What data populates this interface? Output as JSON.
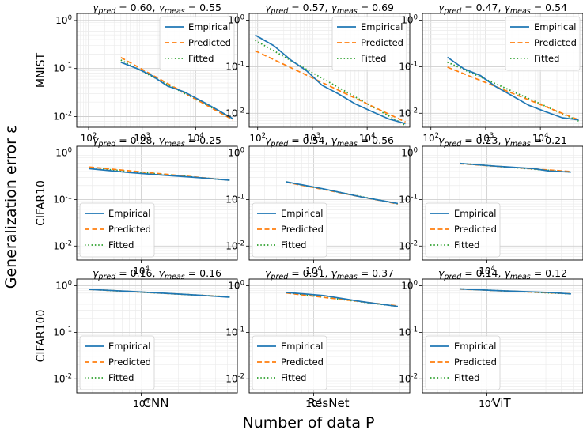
{
  "figure": {
    "ylabel": "Generalization error ε",
    "xlabel": "Number of data P",
    "row_labels": [
      "MNIST",
      "CIFAR10",
      "CIFAR100"
    ],
    "col_labels": [
      "CNN",
      "ResNet",
      "ViT"
    ],
    "legend": [
      "Empirical",
      "Predicted",
      "Fitted"
    ],
    "colors": {
      "empirical": "#1f77b4",
      "predicted": "#ff7f0e",
      "fitted": "#2ca02c",
      "grid": "#d9d9d9"
    },
    "legend_placement": {
      "MNIST": "upper right",
      "CIFAR10": "lower left",
      "CIFAR100": "lower left"
    }
  },
  "chart_data": [
    {
      "type": "line",
      "row": "MNIST",
      "model": "CNN",
      "title": "γpred = 0.60, γmeas = 0.55",
      "gamma_pred": "0.60",
      "gamma_meas": "0.55",
      "xscale": "log",
      "yscale": "log",
      "xlim": [
        60,
        60000
      ],
      "ylim": [
        0.006,
        1.4
      ],
      "xticks": [
        "10^2",
        "10^3",
        "10^4"
      ],
      "yticks": [
        "10^-2",
        "10^-1",
        "10^0"
      ],
      "grid": true,
      "series": [
        {
          "name": "Empirical",
          "x": [
            400,
            800,
            1500,
            3000,
            6000,
            12000,
            25000,
            50000
          ],
          "y": [
            0.135,
            0.1,
            0.072,
            0.043,
            0.033,
            0.022,
            0.014,
            0.009
          ]
        },
        {
          "name": "Predicted",
          "x": [
            400,
            50000
          ],
          "y": [
            0.17,
            0.0085
          ]
        },
        {
          "name": "Fitted",
          "x": [
            400,
            50000
          ],
          "y": [
            0.15,
            0.009
          ]
        }
      ]
    },
    {
      "type": "line",
      "row": "MNIST",
      "model": "ResNet",
      "title": "γpred = 0.57, γmeas = 0.69",
      "gamma_pred": "0.57",
      "gamma_meas": "0.69",
      "xscale": "log",
      "yscale": "log",
      "xlim": [
        70,
        60000
      ],
      "ylim": [
        0.005,
        1.4
      ],
      "xticks": [
        "10^2",
        "10^3",
        "10^4"
      ],
      "yticks": [
        "10^-2",
        "10^-1",
        "10^0"
      ],
      "grid": true,
      "series": [
        {
          "name": "Empirical",
          "x": [
            90,
            200,
            400,
            800,
            1500,
            3000,
            6000,
            12000,
            25000,
            50000
          ],
          "y": [
            0.48,
            0.28,
            0.14,
            0.08,
            0.04,
            0.026,
            0.016,
            0.011,
            0.0075,
            0.006
          ]
        },
        {
          "name": "Predicted",
          "x": [
            90,
            50000
          ],
          "y": [
            0.22,
            0.0065
          ]
        },
        {
          "name": "Fitted",
          "x": [
            90,
            50000
          ],
          "y": [
            0.37,
            0.0055
          ]
        }
      ]
    },
    {
      "type": "line",
      "row": "MNIST",
      "model": "ViT",
      "title": "γpred = 0.47, γmeas = 0.54",
      "gamma_pred": "0.47",
      "gamma_meas": "0.54",
      "xscale": "log",
      "yscale": "log",
      "xlim": [
        70,
        60000
      ],
      "ylim": [
        0.005,
        1.4
      ],
      "xticks": [
        "10^2",
        "10^3",
        "10^4"
      ],
      "yticks": [
        "10^-2",
        "10^-1",
        "10^0"
      ],
      "grid": true,
      "series": [
        {
          "name": "Empirical",
          "x": [
            200,
            400,
            800,
            1500,
            3000,
            6000,
            12000,
            25000,
            50000
          ],
          "y": [
            0.16,
            0.09,
            0.065,
            0.038,
            0.024,
            0.015,
            0.011,
            0.008,
            0.0072
          ]
        },
        {
          "name": "Predicted",
          "x": [
            200,
            50000
          ],
          "y": [
            0.098,
            0.0072
          ]
        },
        {
          "name": "Fitted",
          "x": [
            200,
            50000
          ],
          "y": [
            0.125,
            0.0068
          ]
        }
      ]
    },
    {
      "type": "line",
      "row": "CIFAR10",
      "model": "CNN",
      "title": "γpred = 0.28, γmeas = 0.25",
      "gamma_pred": "0.28",
      "gamma_meas": "0.25",
      "xscale": "log",
      "yscale": "log",
      "xlim": [
        3000,
        60000
      ],
      "ylim": [
        0.005,
        1.4
      ],
      "xticks": [
        "10^4"
      ],
      "yticks": [
        "10^-2",
        "10^-1",
        "10^0"
      ],
      "grid": true,
      "series": [
        {
          "name": "Empirical",
          "x": [
            3800,
            8000,
            16000,
            32000,
            52000
          ],
          "y": [
            0.46,
            0.38,
            0.33,
            0.29,
            0.26
          ]
        },
        {
          "name": "Predicted",
          "x": [
            3800,
            52000
          ],
          "y": [
            0.5,
            0.26
          ]
        },
        {
          "name": "Fitted",
          "x": [
            3800,
            52000
          ],
          "y": [
            0.48,
            0.26
          ]
        }
      ]
    },
    {
      "type": "line",
      "row": "CIFAR10",
      "model": "ResNet",
      "title": "γpred = 0.54, γmeas = 0.56",
      "gamma_pred": "0.54",
      "gamma_meas": "0.56",
      "xscale": "log",
      "yscale": "log",
      "xlim": [
        3000,
        60000
      ],
      "ylim": [
        0.005,
        1.4
      ],
      "xticks": [
        "10^4"
      ],
      "yticks": [
        "10^-2",
        "10^-1",
        "10^0"
      ],
      "grid": true,
      "series": [
        {
          "name": "Empirical",
          "x": [
            6000,
            12000,
            24000,
            48000
          ],
          "y": [
            0.24,
            0.17,
            0.115,
            0.082
          ]
        },
        {
          "name": "Predicted",
          "x": [
            6000,
            48000
          ],
          "y": [
            0.235,
            0.08
          ]
        },
        {
          "name": "Fitted",
          "x": [
            6000,
            48000
          ],
          "y": [
            0.24,
            0.081
          ]
        }
      ]
    },
    {
      "type": "line",
      "row": "CIFAR10",
      "model": "ViT",
      "title": "γpred = 0.23, γmeas = 0.21",
      "gamma_pred": "0.23",
      "gamma_meas": "0.21",
      "xscale": "log",
      "yscale": "log",
      "xlim": [
        3000,
        60000
      ],
      "ylim": [
        0.005,
        1.4
      ],
      "xticks": [
        "10^4"
      ],
      "yticks": [
        "10^-2",
        "10^-1",
        "10^0"
      ],
      "grid": true,
      "series": [
        {
          "name": "Empirical",
          "x": [
            6000,
            12000,
            24000,
            32000,
            48000
          ],
          "y": [
            0.6,
            0.52,
            0.46,
            0.41,
            0.39
          ]
        },
        {
          "name": "Predicted",
          "x": [
            6000,
            48000
          ],
          "y": [
            0.59,
            0.4
          ]
        },
        {
          "name": "Fitted",
          "x": [
            6000,
            48000
          ],
          "y": [
            0.6,
            0.39
          ]
        }
      ]
    },
    {
      "type": "line",
      "row": "CIFAR100",
      "model": "CNN",
      "title": "γpred = 0.16, γmeas = 0.16",
      "gamma_pred": "0.16",
      "gamma_meas": "0.16",
      "xscale": "log",
      "yscale": "log",
      "xlim": [
        3000,
        60000
      ],
      "ylim": [
        0.005,
        1.4
      ],
      "xticks": [
        "10^4"
      ],
      "yticks": [
        "10^-2",
        "10^-1",
        "10^0"
      ],
      "grid": true,
      "series": [
        {
          "name": "Empirical",
          "x": [
            3800,
            8000,
            16000,
            32000,
            52000
          ],
          "y": [
            0.84,
            0.76,
            0.69,
            0.62,
            0.57
          ]
        },
        {
          "name": "Predicted",
          "x": [
            3800,
            52000
          ],
          "y": [
            0.84,
            0.58
          ]
        },
        {
          "name": "Fitted",
          "x": [
            3800,
            52000
          ],
          "y": [
            0.84,
            0.58
          ]
        }
      ]
    },
    {
      "type": "line",
      "row": "CIFAR100",
      "model": "ResNet",
      "title": "γpred = 0.31, γmeas = 0.37",
      "gamma_pred": "0.31",
      "gamma_meas": "0.37",
      "xscale": "log",
      "yscale": "log",
      "xlim": [
        3000,
        60000
      ],
      "ylim": [
        0.005,
        1.4
      ],
      "xticks": [
        "10^4"
      ],
      "yticks": [
        "10^-2",
        "10^-1",
        "10^0"
      ],
      "grid": true,
      "series": [
        {
          "name": "Empirical",
          "x": [
            6000,
            12000,
            24000,
            48000
          ],
          "y": [
            0.72,
            0.62,
            0.46,
            0.36
          ]
        },
        {
          "name": "Predicted",
          "x": [
            6000,
            48000
          ],
          "y": [
            0.7,
            0.37
          ]
        },
        {
          "name": "Fitted",
          "x": [
            6000,
            48000
          ],
          "y": [
            0.72,
            0.36
          ]
        }
      ]
    },
    {
      "type": "line",
      "row": "CIFAR100",
      "model": "ViT",
      "title": "γpred = 0.14, γmeas = 0.12",
      "gamma_pred": "0.14",
      "gamma_meas": "0.12",
      "xscale": "log",
      "yscale": "log",
      "xlim": [
        3000,
        60000
      ],
      "ylim": [
        0.005,
        1.4
      ],
      "xticks": [
        "10^4"
      ],
      "yticks": [
        "10^-2",
        "10^-1",
        "10^0"
      ],
      "grid": true,
      "series": [
        {
          "name": "Empirical",
          "x": [
            6000,
            12000,
            24000,
            32000,
            48000
          ],
          "y": [
            0.86,
            0.79,
            0.74,
            0.72,
            0.67
          ]
        },
        {
          "name": "Predicted",
          "x": [
            6000,
            48000
          ],
          "y": [
            0.85,
            0.68
          ]
        },
        {
          "name": "Fitted",
          "x": [
            6000,
            48000
          ],
          "y": [
            0.86,
            0.67
          ]
        }
      ]
    }
  ]
}
